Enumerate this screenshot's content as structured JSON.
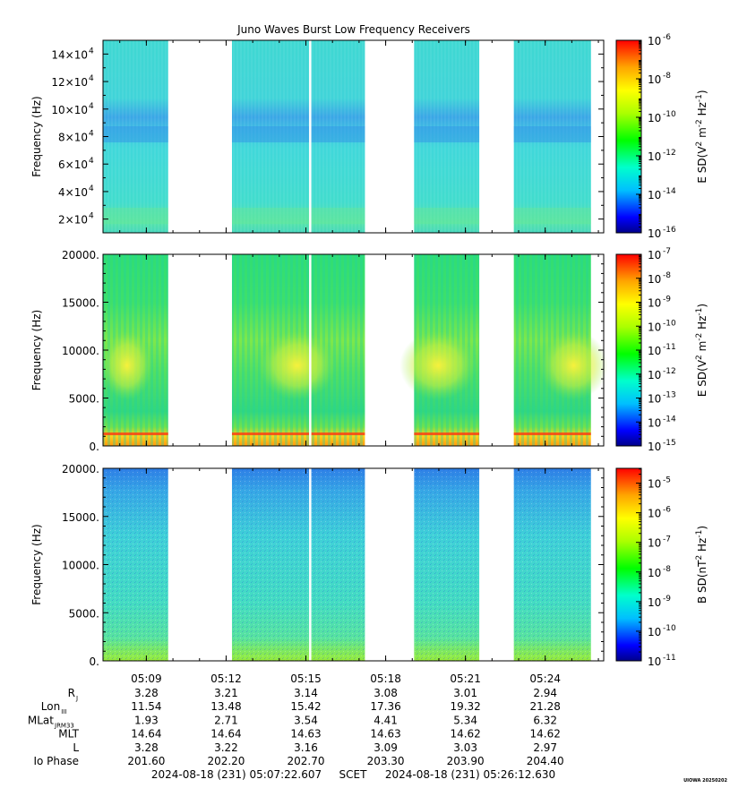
{
  "title": "Juno Waves Burst Low Frequency Receivers",
  "panels": [
    {
      "ylabel": "Frequency (Hz)",
      "yticks": [
        {
          "mant": "2×10",
          "exp": "4"
        },
        {
          "mant": "4×10",
          "exp": "4"
        },
        {
          "mant": "6×10",
          "exp": "4"
        },
        {
          "mant": "8×10",
          "exp": "4"
        },
        {
          "mant": "10×10",
          "exp": "4"
        },
        {
          "mant": "12×10",
          "exp": "4"
        },
        {
          "mant": "14×10",
          "exp": "4"
        }
      ],
      "cbar_label": {
        "base": "E SD(V",
        "sup1": "2",
        "mid": " m",
        "sup2": "-2",
        "mid2": " Hz",
        "sup3": "-1",
        "end": ")"
      },
      "cbar_ticks": [
        {
          "base": "10",
          "exp": "-6"
        },
        {
          "base": "10",
          "exp": "-8"
        },
        {
          "base": "10",
          "exp": "-10"
        },
        {
          "base": "10",
          "exp": "-12"
        },
        {
          "base": "10",
          "exp": "-14"
        },
        {
          "base": "10",
          "exp": "-16"
        }
      ]
    },
    {
      "ylabel": "Frequency (Hz)",
      "yticks": [
        "0.",
        "5000.",
        "10000.",
        "15000.",
        "20000."
      ],
      "cbar_label": {
        "base": "E SD(V",
        "sup1": "2",
        "mid": " m",
        "sup2": "-2",
        "mid2": " Hz",
        "sup3": "-1",
        "end": ")"
      },
      "cbar_ticks": [
        {
          "base": "10",
          "exp": "-7"
        },
        {
          "base": "10",
          "exp": "-8"
        },
        {
          "base": "10",
          "exp": "-9"
        },
        {
          "base": "10",
          "exp": "-10"
        },
        {
          "base": "10",
          "exp": "-11"
        },
        {
          "base": "10",
          "exp": "-12"
        },
        {
          "base": "10",
          "exp": "-13"
        },
        {
          "base": "10",
          "exp": "-14"
        },
        {
          "base": "10",
          "exp": "-15"
        }
      ]
    },
    {
      "ylabel": "Frequency (Hz)",
      "yticks": [
        "0.",
        "5000.",
        "10000.",
        "15000.",
        "20000."
      ],
      "cbar_label": {
        "base": "B SD(nT",
        "sup1": "2",
        "mid": " Hz",
        "sup2": "-1",
        "mid2": "",
        "sup3": "",
        "end": ")"
      },
      "cbar_ticks": [
        {
          "base": "10",
          "exp": "-5"
        },
        {
          "base": "10",
          "exp": "-6"
        },
        {
          "base": "10",
          "exp": "-7"
        },
        {
          "base": "10",
          "exp": "-8"
        },
        {
          "base": "10",
          "exp": "-9"
        },
        {
          "base": "10",
          "exp": "-10"
        },
        {
          "base": "10",
          "exp": "-11"
        }
      ]
    }
  ],
  "ephemeris": {
    "labels": [
      {
        "main": "R",
        "sub": "J"
      },
      {
        "main": "Lon",
        "sub": "III"
      },
      {
        "main": "MLat",
        "sub": "JRM33"
      },
      {
        "main": "MLT",
        "sub": ""
      },
      {
        "main": "L",
        "sub": ""
      },
      {
        "main": "Io Phase",
        "sub": ""
      }
    ],
    "columns": [
      {
        "time": "05:09",
        "values": [
          "3.28",
          "11.54",
          "1.93",
          "14.64",
          "3.28",
          "201.60"
        ]
      },
      {
        "time": "05:12",
        "values": [
          "3.21",
          "13.48",
          "2.71",
          "14.64",
          "3.22",
          "202.20"
        ]
      },
      {
        "time": "05:15",
        "values": [
          "3.14",
          "15.42",
          "3.54",
          "14.63",
          "3.16",
          "202.70"
        ]
      },
      {
        "time": "05:18",
        "values": [
          "3.08",
          "17.36",
          "4.41",
          "14.63",
          "3.09",
          "203.30"
        ]
      },
      {
        "time": "05:21",
        "values": [
          "3.01",
          "19.32",
          "5.34",
          "14.62",
          "3.03",
          "203.90"
        ]
      },
      {
        "time": "05:24",
        "values": [
          "2.94",
          "21.28",
          "6.32",
          "14.62",
          "2.97",
          "204.40"
        ]
      }
    ]
  },
  "footer": {
    "start": "2024-08-18 (231) 05:07:22.607",
    "scet": "SCET",
    "end": "2024-08-18 (231) 05:26:12.630"
  },
  "credit": "UIOWA 20250202",
  "chart_data": {
    "type": "heatmap",
    "title": "Juno Waves Burst Low Frequency Receivers",
    "x_range": [
      "05:07:22.607",
      "05:26:12.630"
    ],
    "x_ticks": [
      "05:09",
      "05:12",
      "05:15",
      "05:18",
      "05:21",
      "05:24"
    ],
    "data_segments_minutes": [
      [
        0.0,
        2.45
      ],
      [
        4.85,
        9.85
      ],
      [
        11.7,
        14.15
      ],
      [
        15.45,
        18.35
      ]
    ],
    "span_minutes": 18.83,
    "panels": [
      {
        "ylabel": "Frequency (Hz)",
        "ylim": [
          10000,
          150000
        ],
        "colorbar": "E SD(V^2 m^-2 Hz^-1)",
        "clim_log10": [
          -16,
          -6
        ]
      },
      {
        "ylabel": "Frequency (Hz)",
        "ylim": [
          0,
          20000
        ],
        "colorbar": "E SD(V^2 m^-2 Hz^-1)",
        "clim_log10": [
          -15,
          -7
        ]
      },
      {
        "ylabel": "Frequency (Hz)",
        "ylim": [
          0,
          20000
        ],
        "colorbar": "B SD(nT^2 Hz^-1)",
        "clim_log10": [
          -11,
          -4.5
        ]
      }
    ],
    "colors": {
      "rainbow": [
        "#00008b",
        "#0000ff",
        "#00bfff",
        "#00ffcc",
        "#00ff00",
        "#aaff00",
        "#ffff00",
        "#ffa500",
        "#ff0000"
      ]
    }
  }
}
